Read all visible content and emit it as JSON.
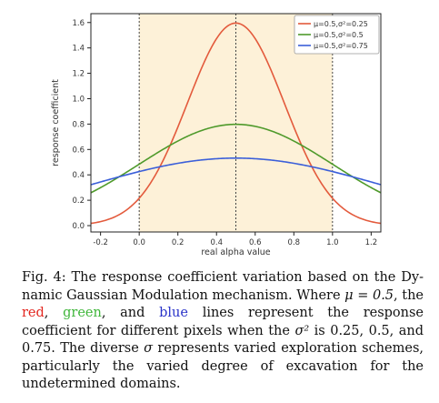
{
  "chart_data": {
    "type": "line",
    "xlabel": "real alpha value",
    "ylabel": "response coefficient",
    "xlim": [
      -0.25,
      1.25
    ],
    "ylim": [
      -0.05,
      1.67
    ],
    "xticks": [
      -0.2,
      0.0,
      0.2,
      0.4,
      0.6,
      0.8,
      1.0,
      1.2
    ],
    "xtick_labels": [
      "-0.2",
      "0.0",
      "0.2",
      "0.4",
      "0.6",
      "0.8",
      "1.0",
      "1.2"
    ],
    "yticks": [
      0.0,
      0.2,
      0.4,
      0.6,
      0.8,
      1.0,
      1.2,
      1.4,
      1.6
    ],
    "ytick_labels": [
      "0.0",
      "0.2",
      "0.4",
      "0.6",
      "0.8",
      "1.0",
      "1.2",
      "1.4",
      "1.6"
    ],
    "shaded_region": [
      0.0,
      1.0
    ],
    "vlines": [
      0.0,
      0.5,
      1.0
    ],
    "grid": false,
    "legend_position": "top-right",
    "series": [
      {
        "name": "μ=0.5,σ²=0.25",
        "mu": 0.5,
        "sigma": 0.25,
        "color": "#e35a3c"
      },
      {
        "name": "μ=0.5,σ²=0.5",
        "mu": 0.5,
        "sigma": 0.5,
        "color": "#4f9a2b"
      },
      {
        "name": "μ=0.5,σ²=0.75",
        "mu": 0.5,
        "sigma": 0.75,
        "color": "#3b5fd9"
      }
    ],
    "shade_color": "#fdf1d8"
  },
  "caption": {
    "lead": "Fig. 4: The response coefficient variation based on the Dy-namic Gaussian Modulation mechanism. Where ",
    "mu_eq": "μ = 0.5",
    "mid": ", the ",
    "red": "red",
    "comma1": ", ",
    "green": "green",
    "and": ", and ",
    "blue": "blue",
    "rest1": " lines represent the response coefficient for different pixels when the ",
    "sigma2": "σ²",
    "rest2": " is 0.25, 0.5, and 0.75. The diverse ",
    "sigma": "σ",
    "rest3": " represents varied exploration schemes, particularly the varied degree of excavation for the undetermined domains."
  }
}
